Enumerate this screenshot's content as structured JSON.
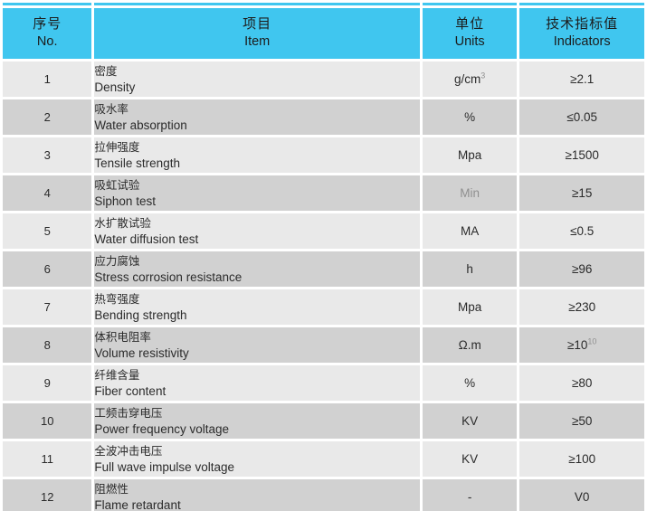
{
  "table": {
    "header": {
      "col_no": {
        "zh": "序号",
        "en": "No."
      },
      "col_item": {
        "zh": "项目",
        "en": "Item"
      },
      "col_units": {
        "zh": "单位",
        "en": "Units"
      },
      "col_indicators": {
        "zh": "技术指标值",
        "en": "Indicators"
      }
    },
    "rows": [
      {
        "no": "1",
        "item_zh": "密度",
        "item_en": "Density",
        "unit": "g/cm",
        "unit_sup": "3",
        "unit_muted": false,
        "indicator": "≥2.1",
        "indicator_sup": ""
      },
      {
        "no": "2",
        "item_zh": "吸水率",
        "item_en": "Water absorption",
        "unit": "%",
        "unit_sup": "",
        "unit_muted": false,
        "indicator": "≤0.05",
        "indicator_sup": ""
      },
      {
        "no": "3",
        "item_zh": "拉伸强度",
        "item_en": "Tensile strength",
        "unit": "Mpa",
        "unit_sup": "",
        "unit_muted": false,
        "indicator": "≥1500",
        "indicator_sup": ""
      },
      {
        "no": "4",
        "item_zh": "吸虹试验",
        "item_en": "Siphon test",
        "unit": "Min",
        "unit_sup": "",
        "unit_muted": true,
        "indicator": "≥15",
        "indicator_sup": ""
      },
      {
        "no": "5",
        "item_zh": "水扩散试验",
        "item_en": "Water diffusion test",
        "unit": "MA",
        "unit_sup": "",
        "unit_muted": false,
        "indicator": "≤0.5",
        "indicator_sup": ""
      },
      {
        "no": "6",
        "item_zh": "应力腐蚀",
        "item_en": "Stress corrosion resistance",
        "unit": "h",
        "unit_sup": "",
        "unit_muted": false,
        "indicator": "≥96",
        "indicator_sup": ""
      },
      {
        "no": "7",
        "item_zh": "热弯强度",
        "item_en": "Bending strength",
        "unit": "Mpa",
        "unit_sup": "",
        "unit_muted": false,
        "indicator": "≥230",
        "indicator_sup": ""
      },
      {
        "no": "8",
        "item_zh": "体积电阻率",
        "item_en": "Volume resistivity",
        "unit": "Ω.m",
        "unit_sup": "",
        "unit_muted": false,
        "indicator": "≥10",
        "indicator_sup": "10"
      },
      {
        "no": "9",
        "item_zh": "纤维含量",
        "item_en": "Fiber content",
        "unit": "%",
        "unit_sup": "",
        "unit_muted": false,
        "indicator": "≥80",
        "indicator_sup": ""
      },
      {
        "no": "10",
        "item_zh": "工频击穿电压",
        "item_en": "Power frequency voltage",
        "unit": "KV",
        "unit_sup": "",
        "unit_muted": false,
        "indicator": "≥50",
        "indicator_sup": ""
      },
      {
        "no": "11",
        "item_zh": "全波冲击电压",
        "item_en": "Full wave impulse voltage",
        "unit": "KV",
        "unit_sup": "",
        "unit_muted": false,
        "indicator": "≥100",
        "indicator_sup": ""
      },
      {
        "no": "12",
        "item_zh": "阻燃性",
        "item_en": "Flame retardant",
        "unit": "-",
        "unit_sup": "",
        "unit_muted": false,
        "indicator": "V0",
        "indicator_sup": ""
      }
    ],
    "colors": {
      "header_bg": "#40c6ef",
      "row_light": "#e9e9e9",
      "row_dark": "#d1d1d1",
      "gap": "#ffffff",
      "text": "#2b2b2b",
      "muted_text": "#8f8f8f"
    }
  }
}
